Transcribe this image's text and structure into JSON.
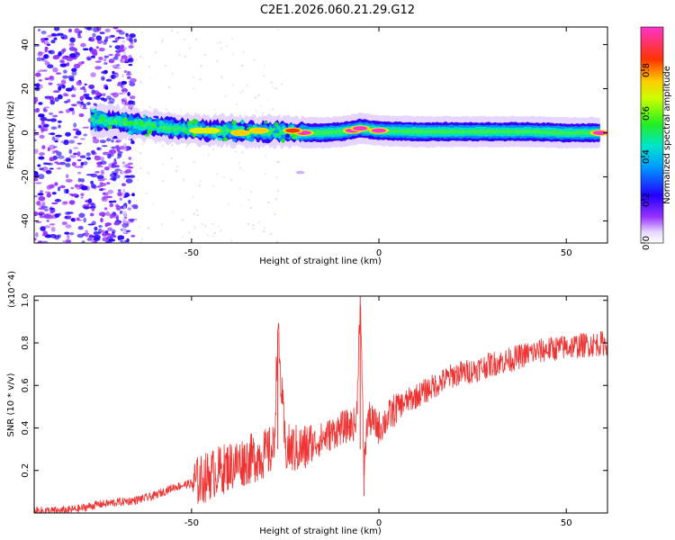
{
  "title": "C2E1.2026.060.21.29.G12",
  "chart_data": [
    {
      "type": "heatmap",
      "xlabel": "Height of straight line (km)",
      "ylabel": "Frequency (Hz)",
      "xlim": [
        -92,
        61
      ],
      "ylim": [
        -50,
        48
      ],
      "xticks": [
        "-50",
        "0",
        "50"
      ],
      "yticks": [
        "-40",
        "-20",
        "0",
        "20",
        "40"
      ],
      "colorbar": {
        "label": "Normalized spectral amplitude",
        "range": [
          0,
          1
        ],
        "ticks": [
          "0.0",
          "0.2",
          "0.4",
          "0.6",
          "0.8"
        ]
      },
      "ridge": {
        "x": [
          -77,
          -70,
          -65,
          -60,
          -55,
          -50,
          -45,
          -40,
          -35,
          -30,
          -25,
          -20,
          -15,
          -10,
          -5,
          0,
          10,
          20,
          30,
          40,
          50,
          59
        ],
        "freq": [
          6,
          5,
          4,
          3,
          2,
          1.5,
          1,
          1,
          0.5,
          0.5,
          0.5,
          0,
          0,
          0.5,
          2,
          1,
          0.5,
          0.5,
          0.5,
          0.5,
          0,
          0
        ]
      },
      "hotspots": [
        {
          "x": -20,
          "freq": 0,
          "amp": 0.95
        },
        {
          "x": 0,
          "freq": 1,
          "amp": 0.95
        },
        {
          "x": -7,
          "freq": 1,
          "amp": 0.9
        },
        {
          "x": -5,
          "freq": 2,
          "amp": 0.9
        },
        {
          "x": 59,
          "freq": 0,
          "amp": 0.95
        },
        {
          "x": -23,
          "freq": 1,
          "amp": 0.85
        },
        {
          "x": -32,
          "freq": 1,
          "amp": 0.75
        },
        {
          "x": -37,
          "freq": 0,
          "amp": 0.7
        },
        {
          "x": -45,
          "freq": 1,
          "amp": 0.6
        },
        {
          "x": -48,
          "freq": 1,
          "amp": 0.6
        }
      ]
    },
    {
      "type": "line",
      "xlabel": "Height of straight line (km)",
      "ylabel": "SNR (10 * v/v)",
      "scale_label": "(x10^4)",
      "xlim": [
        -92,
        61
      ],
      "ylim": [
        0,
        1.02
      ],
      "xticks": [
        "-50",
        "0",
        "50"
      ],
      "yticks": [
        "0.2",
        "0.4",
        "0.6",
        "0.8",
        "1.0"
      ],
      "color": "#ee3333",
      "x": [
        -92,
        -85,
        -80,
        -75,
        -70,
        -65,
        -60,
        -55,
        -50,
        -48,
        -45,
        -40,
        -35,
        -30,
        -28,
        -27,
        -25,
        -20,
        -15,
        -10,
        -6,
        -5,
        -4,
        -3,
        0,
        5,
        10,
        15,
        20,
        25,
        30,
        35,
        40,
        45,
        50,
        55,
        61
      ],
      "y": [
        0.01,
        0.01,
        0.02,
        0.04,
        0.05,
        0.06,
        0.08,
        0.12,
        0.14,
        0.15,
        0.18,
        0.22,
        0.25,
        0.28,
        0.3,
        0.85,
        0.3,
        0.3,
        0.35,
        0.4,
        0.42,
        1.02,
        0.2,
        0.45,
        0.4,
        0.5,
        0.55,
        0.6,
        0.65,
        0.67,
        0.7,
        0.72,
        0.75,
        0.77,
        0.78,
        0.79,
        0.8
      ]
    }
  ]
}
